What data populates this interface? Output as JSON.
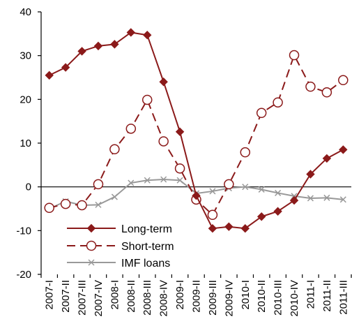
{
  "chart_data": {
    "type": "line",
    "categories": [
      "2007-I",
      "2007-II",
      "2007-III",
      "2007-IV",
      "2008-I",
      "2008-II",
      "2008-III",
      "2008-IV",
      "2009-I",
      "2009-II",
      "2009-III",
      "2009-IV",
      "2010-I",
      "2010-II",
      "2010-III",
      "2010-IV",
      "2011-I",
      "2011-II",
      "2011-III"
    ],
    "ylim": [
      -20,
      40
    ],
    "yticks": [
      -20,
      -10,
      0,
      10,
      20,
      30,
      40
    ],
    "grid": false,
    "legend_position": "bottom-left",
    "series": [
      {
        "name": "Long-term",
        "color": "#8b1a1a",
        "dash": "solid",
        "marker": "diamond",
        "values": [
          25.5,
          27.3,
          31.0,
          32.2,
          32.6,
          35.3,
          34.7,
          24.0,
          12.6,
          -2.0,
          -9.5,
          -9.1,
          -9.5,
          -6.8,
          -5.6,
          -3.1,
          2.9,
          6.5,
          8.5
        ]
      },
      {
        "name": "Short-term",
        "color": "#8b1a1a",
        "dash": "dashed",
        "marker": "circle",
        "values": [
          -4.8,
          -3.9,
          -4.2,
          0.6,
          8.6,
          13.3,
          19.9,
          10.4,
          4.2,
          -2.9,
          -6.4,
          0.6,
          7.9,
          16.9,
          19.3,
          30.1,
          22.9,
          21.6,
          24.4
        ]
      },
      {
        "name": "IMF loans",
        "color": "#999999",
        "dash": "solid",
        "marker": "x",
        "values": [
          -5.0,
          -3.3,
          -4.2,
          -4.1,
          -2.3,
          0.9,
          1.5,
          1.7,
          1.5,
          -1.5,
          -1.0,
          -0.3,
          0.0,
          -0.6,
          -1.4,
          -2.1,
          -2.6,
          -2.5,
          -2.9
        ]
      }
    ]
  }
}
